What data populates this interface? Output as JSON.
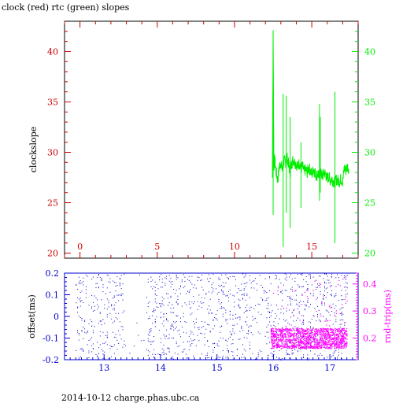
{
  "title": "clock (red) rtc (green) slopes",
  "footer": "2014-10-12 charge.phas.ubc.ca",
  "colors": {
    "clock": "#cc0000",
    "rtc": "#00ee00",
    "offset": "#0000cc",
    "rndtrip": "#ff00ff",
    "axis": "#000000"
  },
  "chart_data": [
    {
      "type": "line",
      "title": "clock (red) rtc (green) slopes",
      "ylabel": "clockslope",
      "xlim": [
        -1,
        18
      ],
      "ylim": [
        19.5,
        43
      ],
      "x_ticks": [
        0,
        5,
        10,
        15
      ],
      "y_ticks": [
        20,
        25,
        30,
        35,
        40
      ],
      "grid": false,
      "series": [
        {
          "name": "rtc (green)",
          "x": [
            12.45,
            12.5,
            12.55,
            12.6,
            12.7,
            12.8,
            12.9,
            13.0,
            13.1,
            13.2,
            13.3,
            13.4,
            13.5,
            13.6,
            13.7,
            13.8,
            13.9,
            14.0,
            14.1,
            14.2,
            14.3,
            14.4,
            14.5,
            14.6,
            14.7,
            14.8,
            14.9,
            15.0,
            15.1,
            15.2,
            15.3,
            15.4,
            15.5,
            15.6,
            15.7,
            15.8,
            15.9,
            16.0,
            16.1,
            16.2,
            16.3,
            16.4,
            16.5,
            16.6,
            16.7,
            16.8,
            16.9,
            17.0,
            17.1,
            17.2,
            17.3,
            17.4
          ],
          "values": [
            27.5,
            42.0,
            28.5,
            29.3,
            28.0,
            27.2,
            28.6,
            29.0,
            28.2,
            29.2,
            29.0,
            29.5,
            28.8,
            28.0,
            28.9,
            29.3,
            29.0,
            28.8,
            28.6,
            29.0,
            28.4,
            28.6,
            28.1,
            28.3,
            28.0,
            28.5,
            28.2,
            27.8,
            28.4,
            28.0,
            27.7,
            27.9,
            27.5,
            27.9,
            27.6,
            28.0,
            27.8,
            27.4,
            27.6,
            27.2,
            27.4,
            27.1,
            27.0,
            27.3,
            27.2,
            27.1,
            27.4,
            27.0,
            28.5,
            28.2,
            28.6,
            28.4
          ]
        }
      ]
    },
    {
      "type": "scatter",
      "ylabel": "offset(ms)",
      "y2label": "rnd-trip(ms)",
      "xlim": [
        12.3,
        17.5
      ],
      "ylim": [
        -0.2,
        0.2
      ],
      "y2lim": [
        0.12,
        0.44
      ],
      "x_ticks": [
        13,
        14,
        15,
        16,
        17
      ],
      "y_ticks": [
        -0.2,
        -0.1,
        0,
        0.1,
        0.2
      ],
      "y2_ticks": [
        0.2,
        0.3,
        0.4
      ],
      "series": [
        {
          "name": "offset",
          "x_range": [
            12.5,
            17.3
          ],
          "y_range": [
            -0.2,
            0.2
          ]
        },
        {
          "name": "rnd-trip",
          "x_range": [
            15.95,
            17.3
          ],
          "y_range": [
            0.16,
            0.24
          ]
        }
      ]
    }
  ],
  "labels": {
    "top_y_left": [
      "20",
      "25",
      "30",
      "35",
      "40"
    ],
    "top_y_right": [
      "20",
      "25",
      "30",
      "35",
      "40"
    ],
    "top_x": [
      "0",
      "5",
      "10",
      "15"
    ],
    "bot_y_left": [
      "-0.2",
      "-0.1",
      "0",
      "0.1",
      "0.2"
    ],
    "bot_y_right": [
      "0.2",
      "0.3",
      "0.4"
    ],
    "bot_x": [
      "13",
      "14",
      "15",
      "16",
      "17"
    ]
  }
}
